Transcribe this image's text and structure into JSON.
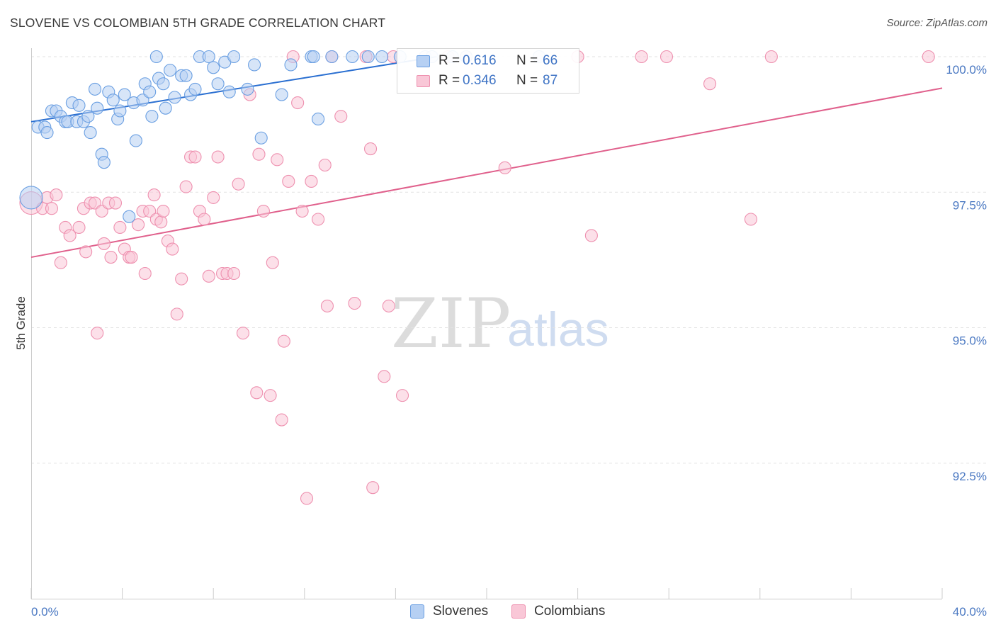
{
  "title": "SLOVENE VS COLOMBIAN 5TH GRADE CORRELATION CHART",
  "source": "Source: ZipAtlas.com",
  "watermark": {
    "zip": "ZIP",
    "atlas": "atlas"
  },
  "colors": {
    "slovenes_fill": "#b6d0f3",
    "slovenes_stroke": "#6a9fe2",
    "slovenes_line": "#2a6fd1",
    "colombians_fill": "#f9c7d7",
    "colombians_stroke": "#ee90af",
    "colombians_line": "#e0608c",
    "tick_label": "#4a78c2",
    "grid": "#e2e2e2"
  },
  "stats": [
    {
      "r_label": "R =",
      "r_value": "0.616",
      "n_label": "N =",
      "n_value": "66",
      "series": "slovenes"
    },
    {
      "r_label": "R =",
      "r_value": "0.346",
      "n_label": "N =",
      "n_value": "87",
      "series": "colombians"
    }
  ],
  "legend": [
    {
      "label": "Slovenes",
      "series": "slovenes"
    },
    {
      "label": "Colombians",
      "series": "colombians"
    }
  ],
  "chart_data": {
    "type": "scatter",
    "title": "SLOVENE VS COLOMBIAN 5TH GRADE CORRELATION CHART",
    "xlabel": "",
    "ylabel": "5th Grade",
    "xlim": [
      0,
      40
    ],
    "ylim": [
      90.0,
      100.45
    ],
    "x_tick_labels": [
      "0.0%",
      "40.0%"
    ],
    "y_ticks": [
      92.5,
      95.0,
      97.5,
      100.0
    ],
    "y_tick_labels": [
      "92.5%",
      "95.0%",
      "97.5%",
      "100.0%"
    ],
    "grid": true,
    "series": [
      {
        "name": "Slovenes",
        "trend": {
          "x": [
            0,
            17.8
          ],
          "y": [
            98.8,
            100.0
          ]
        },
        "points": [
          [
            0.0,
            97.4
          ],
          [
            0.3,
            98.7
          ],
          [
            0.6,
            98.7
          ],
          [
            0.7,
            98.6
          ],
          [
            0.9,
            99.0
          ],
          [
            1.1,
            99.0
          ],
          [
            1.3,
            98.9
          ],
          [
            1.5,
            98.8
          ],
          [
            1.6,
            98.8
          ],
          [
            1.8,
            99.15
          ],
          [
            2.0,
            98.8
          ],
          [
            2.1,
            99.1
          ],
          [
            2.3,
            98.8
          ],
          [
            2.5,
            98.9
          ],
          [
            2.6,
            98.6
          ],
          [
            2.8,
            99.4
          ],
          [
            2.9,
            99.05
          ],
          [
            3.1,
            98.2
          ],
          [
            3.2,
            98.05
          ],
          [
            3.4,
            99.35
          ],
          [
            3.6,
            99.2
          ],
          [
            3.8,
            98.85
          ],
          [
            3.9,
            99.0
          ],
          [
            4.1,
            99.3
          ],
          [
            4.3,
            97.05
          ],
          [
            4.5,
            99.15
          ],
          [
            4.6,
            98.45
          ],
          [
            4.9,
            99.2
          ],
          [
            5.0,
            99.5
          ],
          [
            5.2,
            99.35
          ],
          [
            5.3,
            98.9
          ],
          [
            5.5,
            100.0
          ],
          [
            5.6,
            99.6
          ],
          [
            5.8,
            99.5
          ],
          [
            5.9,
            99.05
          ],
          [
            6.1,
            99.75
          ],
          [
            6.3,
            99.25
          ],
          [
            6.6,
            99.65
          ],
          [
            6.8,
            99.65
          ],
          [
            7.0,
            99.3
          ],
          [
            7.2,
            99.4
          ],
          [
            7.4,
            100.0
          ],
          [
            7.8,
            100.0
          ],
          [
            8.0,
            99.8
          ],
          [
            8.2,
            99.5
          ],
          [
            8.5,
            99.9
          ],
          [
            8.7,
            99.35
          ],
          [
            8.9,
            100.0
          ],
          [
            9.5,
            99.4
          ],
          [
            9.8,
            99.85
          ],
          [
            10.1,
            98.5
          ],
          [
            11.0,
            99.3
          ],
          [
            11.4,
            99.85
          ],
          [
            12.3,
            100.0
          ],
          [
            12.4,
            100.0
          ],
          [
            12.6,
            98.85
          ],
          [
            13.2,
            100.0
          ],
          [
            14.1,
            100.0
          ],
          [
            14.8,
            100.0
          ],
          [
            15.4,
            100.0
          ],
          [
            16.2,
            100.0
          ],
          [
            17.3,
            100.0
          ],
          [
            17.6,
            100.0
          ],
          [
            18.5,
            100.0
          ],
          [
            19.1,
            100.0
          ],
          [
            22.3,
            100.0
          ]
        ]
      },
      {
        "name": "Colombians",
        "trend": {
          "x": [
            0,
            40
          ],
          "y": [
            96.3,
            99.42
          ]
        },
        "points": [
          [
            0.0,
            97.3
          ],
          [
            0.5,
            97.2
          ],
          [
            0.7,
            97.4
          ],
          [
            0.9,
            97.2
          ],
          [
            1.1,
            97.45
          ],
          [
            1.3,
            96.2
          ],
          [
            1.5,
            96.85
          ],
          [
            1.7,
            96.7
          ],
          [
            2.1,
            96.85
          ],
          [
            2.3,
            97.2
          ],
          [
            2.4,
            96.4
          ],
          [
            2.6,
            97.3
          ],
          [
            2.8,
            97.3
          ],
          [
            2.9,
            94.9
          ],
          [
            3.1,
            97.15
          ],
          [
            3.2,
            96.55
          ],
          [
            3.4,
            97.3
          ],
          [
            3.5,
            96.3
          ],
          [
            3.7,
            97.3
          ],
          [
            3.9,
            96.85
          ],
          [
            4.1,
            96.45
          ],
          [
            4.3,
            96.3
          ],
          [
            4.4,
            96.3
          ],
          [
            4.7,
            96.9
          ],
          [
            4.9,
            97.15
          ],
          [
            5.0,
            96.0
          ],
          [
            5.2,
            97.15
          ],
          [
            5.4,
            97.45
          ],
          [
            5.5,
            97.0
          ],
          [
            5.7,
            96.95
          ],
          [
            5.8,
            97.15
          ],
          [
            6.0,
            96.6
          ],
          [
            6.2,
            96.45
          ],
          [
            6.4,
            95.25
          ],
          [
            6.6,
            95.9
          ],
          [
            6.8,
            97.6
          ],
          [
            7.0,
            98.15
          ],
          [
            7.2,
            98.15
          ],
          [
            7.4,
            97.15
          ],
          [
            7.6,
            97.0
          ],
          [
            7.8,
            95.95
          ],
          [
            8.0,
            97.4
          ],
          [
            8.2,
            98.15
          ],
          [
            8.4,
            96.0
          ],
          [
            8.6,
            96.0
          ],
          [
            8.9,
            96.0
          ],
          [
            9.1,
            97.65
          ],
          [
            9.3,
            94.9
          ],
          [
            9.6,
            99.3
          ],
          [
            9.9,
            93.8
          ],
          [
            10.0,
            98.2
          ],
          [
            10.2,
            97.15
          ],
          [
            10.5,
            93.75
          ],
          [
            10.6,
            96.2
          ],
          [
            10.8,
            98.1
          ],
          [
            11.0,
            93.3
          ],
          [
            11.1,
            94.75
          ],
          [
            11.3,
            97.7
          ],
          [
            11.5,
            100.0
          ],
          [
            11.7,
            99.15
          ],
          [
            11.9,
            97.15
          ],
          [
            12.1,
            91.85
          ],
          [
            12.3,
            97.7
          ],
          [
            12.6,
            97.0
          ],
          [
            12.9,
            98.0
          ],
          [
            13.0,
            95.4
          ],
          [
            13.2,
            100.0
          ],
          [
            13.6,
            98.9
          ],
          [
            14.2,
            95.45
          ],
          [
            14.7,
            100.0
          ],
          [
            14.9,
            98.3
          ],
          [
            15.0,
            92.05
          ],
          [
            15.5,
            94.1
          ],
          [
            15.7,
            95.4
          ],
          [
            15.9,
            100.0
          ],
          [
            16.3,
            93.75
          ],
          [
            18.3,
            100.0
          ],
          [
            19.1,
            100.0
          ],
          [
            20.8,
            97.95
          ],
          [
            24.0,
            100.0
          ],
          [
            24.6,
            96.7
          ],
          [
            26.8,
            100.0
          ],
          [
            27.9,
            100.0
          ],
          [
            29.8,
            99.5
          ],
          [
            31.6,
            97.0
          ],
          [
            32.5,
            100.0
          ],
          [
            39.4,
            100.0
          ]
        ]
      }
    ]
  }
}
